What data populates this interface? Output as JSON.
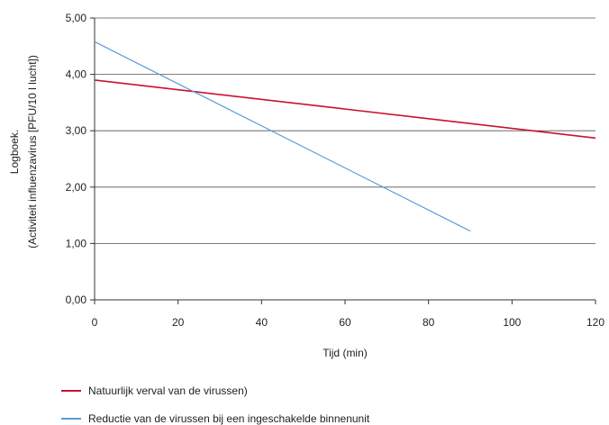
{
  "chart_data": {
    "type": "line",
    "xlabel": "Tijd (min)",
    "ylabel_lines": [
      "Logboek.",
      "(Activiteit influenzavirus [PFU/10 l lucht])"
    ],
    "xlim": [
      0,
      120
    ],
    "ylim": [
      0,
      5
    ],
    "xticks": [
      0,
      20,
      40,
      60,
      80,
      100,
      120
    ],
    "xtick_labels": [
      "0",
      "20",
      "40",
      "60",
      "80",
      "100",
      "120"
    ],
    "yticks": [
      0,
      1,
      2,
      3,
      4,
      5
    ],
    "ytick_labels": [
      "0,00",
      "1,00",
      "2,00",
      "3,00",
      "4,00",
      "5,00"
    ],
    "grid": "horizontal",
    "series": [
      {
        "name": "Natuurlijk verval van de virussen)",
        "color": "#c8102e",
        "x": [
          0,
          120
        ],
        "y": [
          3.9,
          2.87
        ]
      },
      {
        "name": "Reductie van de virussen bij een ingeschakelde binnenunit",
        "color": "#5b9bd5",
        "x": [
          0,
          90
        ],
        "y": [
          4.58,
          1.22
        ]
      }
    ]
  }
}
